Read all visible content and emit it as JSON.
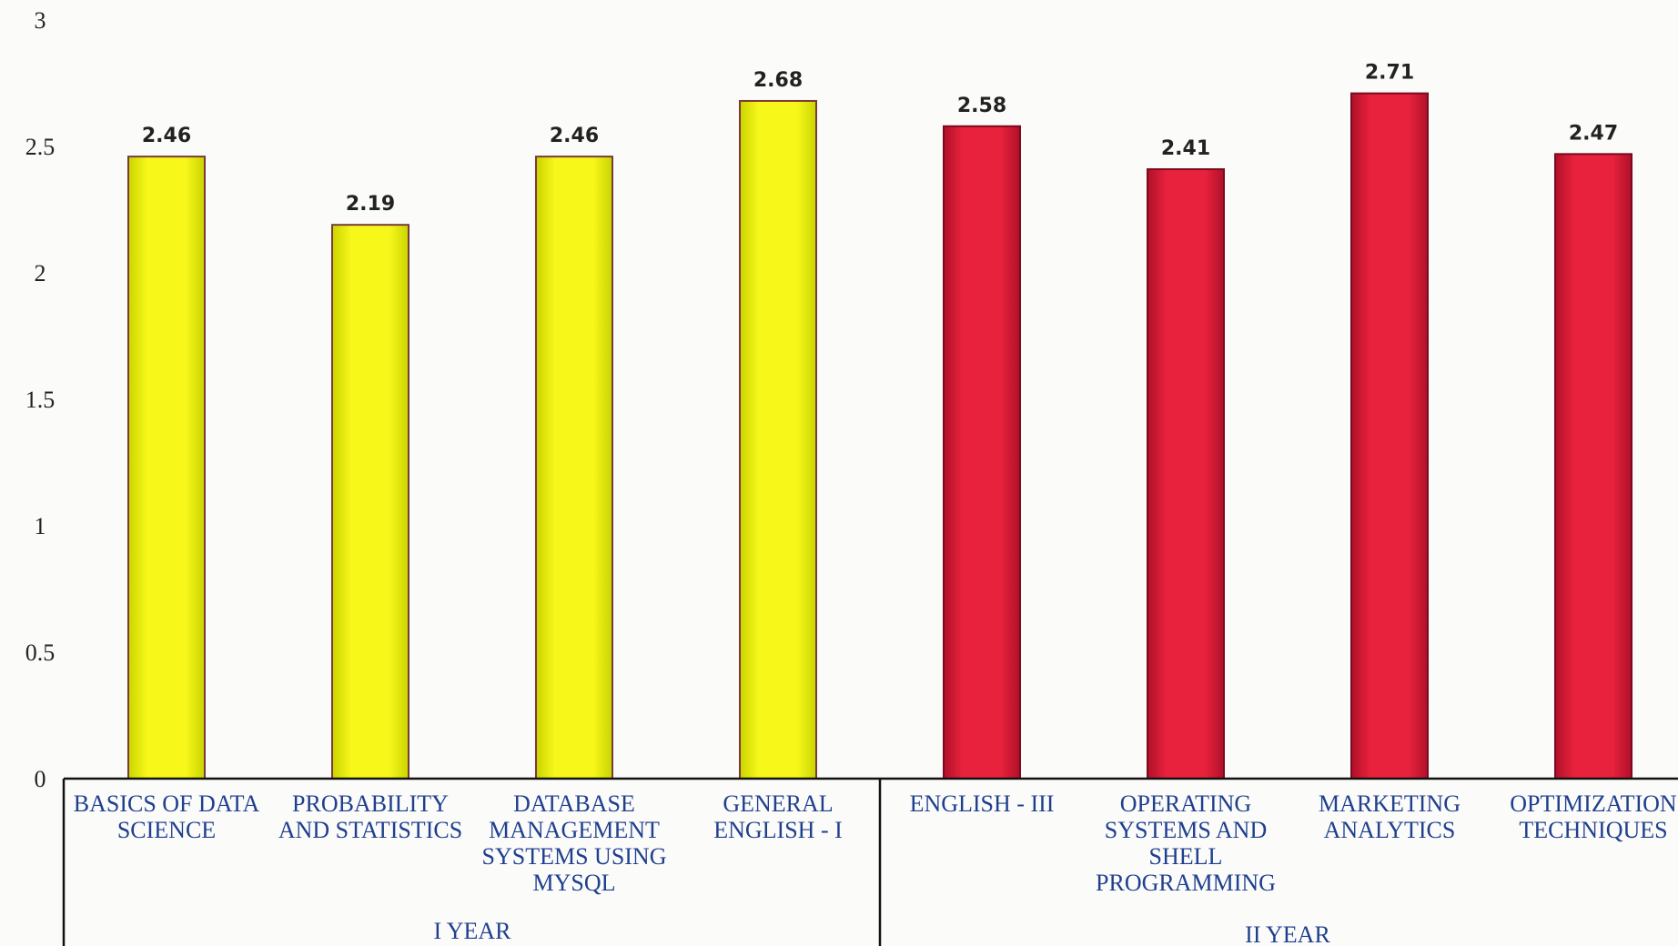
{
  "chart_data": {
    "type": "bar",
    "title": "",
    "xlabel": "",
    "ylabel": "",
    "ylim": [
      0,
      3
    ],
    "yticks": [
      0,
      0.5,
      1,
      1.5,
      2,
      2.5,
      3
    ],
    "yticks_text": [
      "0",
      "0.5",
      "1",
      "1.5",
      "2",
      "2.5",
      "3"
    ],
    "grid": false,
    "legend": "none",
    "categories": [
      [
        "BASICS OF DATA",
        "SCIENCE"
      ],
      [
        "PROBABILITY",
        "AND STATISTICS"
      ],
      [
        "DATABASE",
        "MANAGEMENT",
        "SYSTEMS USING",
        "MYSQL"
      ],
      [
        "GENERAL",
        "ENGLISH - I"
      ],
      [
        "ENGLISH - III"
      ],
      [
        "OPERATING",
        "SYSTEMS AND",
        "SHELL",
        "PROGRAMMING"
      ],
      [
        "MARKETING",
        "ANALYTICS"
      ],
      [
        "OPTIMIZATION",
        "TECHNIQUES"
      ]
    ],
    "values": [
      2.46,
      2.19,
      2.46,
      2.68,
      2.58,
      2.41,
      2.71,
      2.47
    ],
    "value_labels": [
      "2.46",
      "2.19",
      "2.46",
      "2.68",
      "2.58",
      "2.41",
      "2.71",
      "2.47"
    ],
    "groups": [
      {
        "label": "I YEAR",
        "start": 0,
        "end": 3,
        "color": "#f5f50c"
      },
      {
        "label": "II YEAR",
        "start": 4,
        "end": 7,
        "color": "#e0213a"
      }
    ]
  }
}
